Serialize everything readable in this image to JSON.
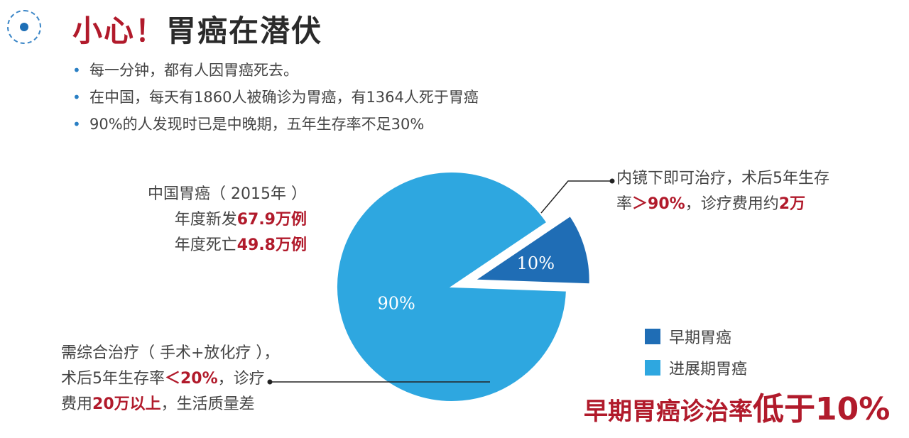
{
  "header": {
    "title_warn": "小心！",
    "title_main": "胃癌在潜伏",
    "bullets": [
      "每一分钟，都有人因胃癌死去。",
      "在中国，每天有1860人被确诊为胃癌，有1364人死于胃癌",
      "90%的人发现时已是中晚期，五年生存率不足30%"
    ]
  },
  "stats": {
    "line1": "中国胃癌（ 2015年 ）",
    "new_prefix": "年度新发",
    "new_value": "67.9万例",
    "death_prefix": "年度死亡",
    "death_value": "49.8万例"
  },
  "callout_early": {
    "line1": "内镜下即可治疗，术后5年生存",
    "line2_prefix": "率",
    "line2_value": "＞90%",
    "line2_mid": "，诊疗费用约",
    "line2_cost": "2万"
  },
  "callout_late": {
    "line1": "需综合治疗（ 手术+放化疗 ），",
    "line2_prefix": "术后5年生存率",
    "line2_value": "＜20%",
    "line2_suffix": "，诊疗",
    "line3_prefix": "费用",
    "line3_value": "20万以上",
    "line3_suffix": "，生活质量差"
  },
  "bottom_note": {
    "part1": "早期胃癌诊治率",
    "part2": "低于10%"
  },
  "chart_data": {
    "type": "pie",
    "slices": [
      {
        "label": "早期胃癌",
        "value": 10,
        "display": "10%",
        "color": "#1f6db5",
        "exploded": true
      },
      {
        "label": "进展期胃癌",
        "value": 90,
        "display": "90%",
        "color": "#2ea7e0",
        "exploded": false
      }
    ],
    "legend": [
      "早期胃癌",
      "进展期胃癌"
    ],
    "legend_position": "right"
  }
}
